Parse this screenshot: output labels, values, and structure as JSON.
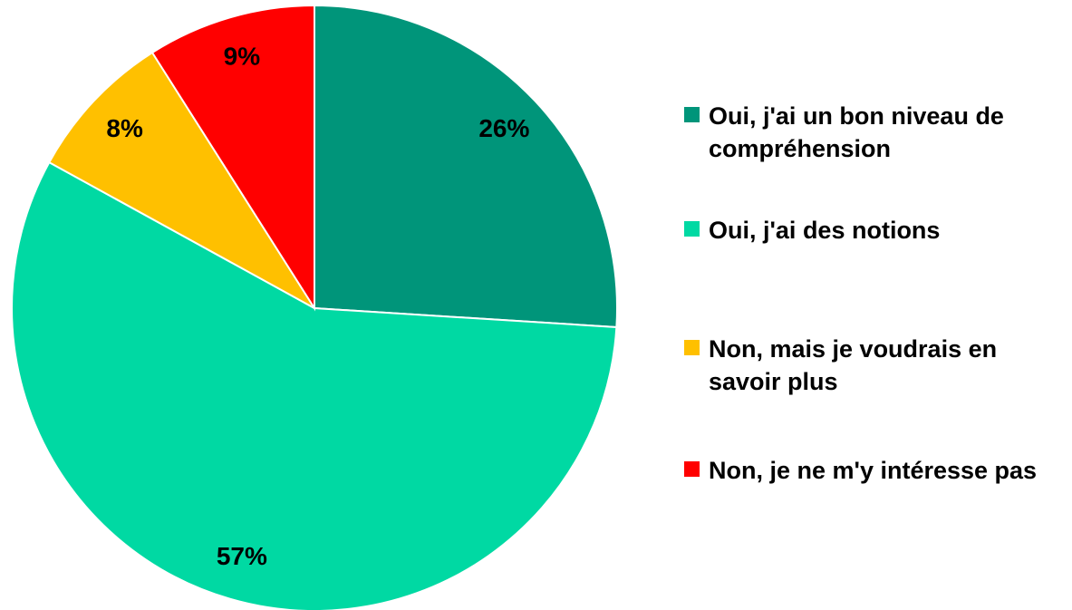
{
  "chart_data": {
    "type": "pie",
    "categories": [
      "Oui, j'ai un bon niveau de compréhension",
      "Oui, j'ai des notions",
      "Non, mais je voudrais en savoir plus",
      "Non, je ne m'y intéresse pas"
    ],
    "values": [
      26,
      57,
      8,
      9
    ],
    "value_labels": [
      "26%",
      "57%",
      "8%",
      "9%"
    ],
    "colors": [
      "#00957a",
      "#00d9a3",
      "#ffc000",
      "#ff0000"
    ],
    "legend": "right"
  }
}
